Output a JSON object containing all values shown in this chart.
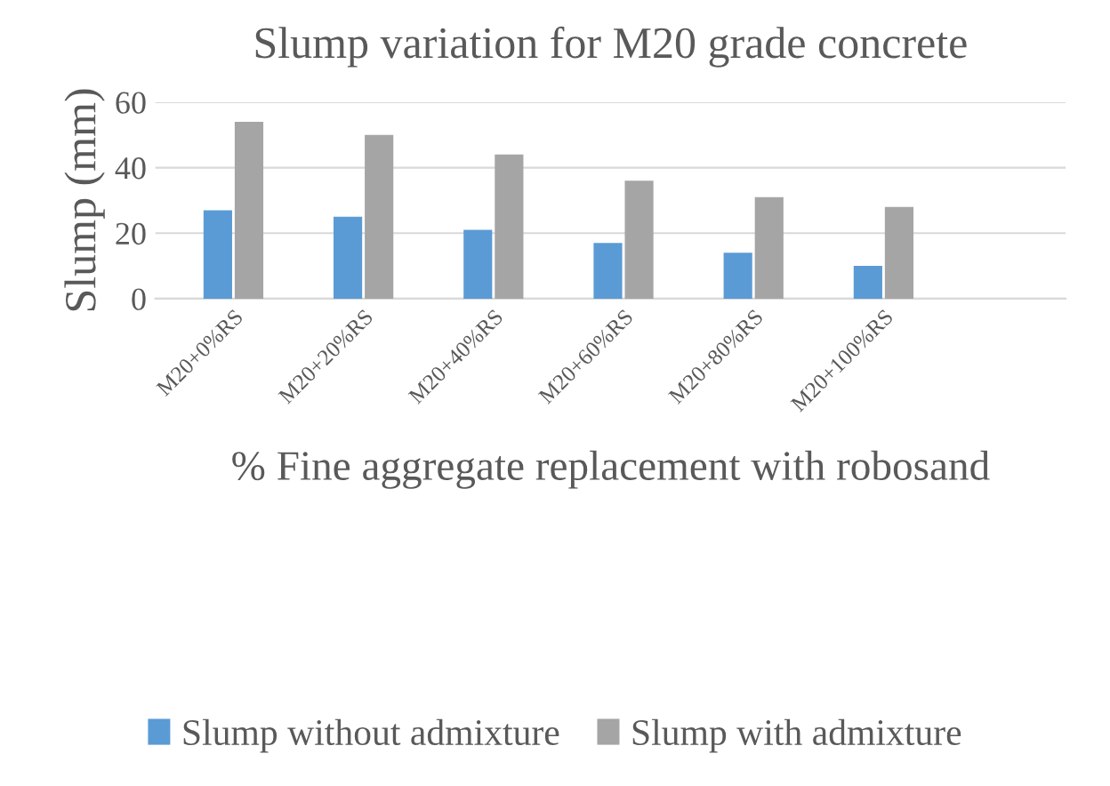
{
  "chart_data": {
    "type": "bar",
    "title": "Slump variation for M20 grade concrete",
    "xlabel": "% Fine aggregate replacement with robosand",
    "ylabel": "Slump (mm)",
    "categories": [
      "M20+0%RS",
      "M20+20%RS",
      "M20+40%RS",
      "M20+60%RS",
      "M20+80%RS",
      "M20+100%RS"
    ],
    "series": [
      {
        "name": "Slump without admixture",
        "color": "#5b9bd5",
        "values": [
          27,
          25,
          21,
          17,
          14,
          10
        ]
      },
      {
        "name": "Slump with admixture",
        "color": "#a5a5a5",
        "values": [
          54,
          50,
          44,
          36,
          31,
          28
        ]
      }
    ],
    "ylim": [
      0,
      60
    ],
    "yticks": [
      0,
      20,
      40,
      60
    ],
    "grid": "y",
    "legend": "bottom"
  }
}
